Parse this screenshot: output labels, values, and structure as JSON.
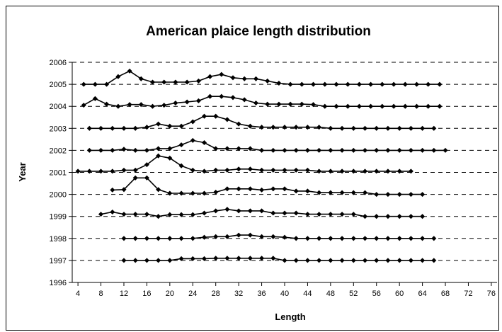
{
  "chart_data": {
    "type": "line",
    "title": "American plaice length distribution",
    "xlabel": "Length",
    "ylabel": "Year",
    "xlim": [
      3,
      77
    ],
    "ylim": [
      1996,
      2006
    ],
    "x_ticks": [
      4,
      8,
      12,
      16,
      20,
      24,
      28,
      32,
      36,
      40,
      44,
      48,
      52,
      56,
      60,
      64,
      68,
      72,
      76
    ],
    "y_ticks": [
      1996,
      1997,
      1998,
      1999,
      2000,
      2001,
      2002,
      2003,
      2004,
      2005,
      2006
    ],
    "grid": "horizontal dashed at each year",
    "legend": "none",
    "line_color": "#000000",
    "series": [
      {
        "year": 1997,
        "x": [
          12,
          14,
          16,
          18,
          20,
          22,
          24,
          26,
          28,
          30,
          32,
          34,
          36,
          38,
          40,
          42,
          44,
          46,
          48,
          50,
          52,
          54,
          56,
          58,
          60,
          62,
          64,
          66
        ],
        "y": [
          1997.0,
          1997.0,
          1997.0,
          1997.0,
          1997.0,
          1997.08,
          1997.08,
          1997.08,
          1997.1,
          1997.1,
          1997.1,
          1997.1,
          1997.1,
          1997.1,
          1997.0,
          1997.0,
          1997.0,
          1997.0,
          1997.0,
          1997.0,
          1997.0,
          1997.0,
          1997.0,
          1997.0,
          1997.0,
          1997.0,
          1997.0,
          1997.0
        ]
      },
      {
        "year": 1998,
        "x": [
          12,
          14,
          16,
          18,
          20,
          22,
          24,
          26,
          28,
          30,
          32,
          34,
          36,
          38,
          40,
          42,
          44,
          46,
          48,
          50,
          52,
          54,
          56,
          58,
          60,
          62,
          64,
          66
        ],
        "y": [
          1998.0,
          1998.0,
          1998.0,
          1998.0,
          1998.0,
          1998.0,
          1998.0,
          1998.05,
          1998.08,
          1998.08,
          1998.15,
          1998.15,
          1998.08,
          1998.08,
          1998.05,
          1998.0,
          1998.0,
          1998.0,
          1998.0,
          1998.0,
          1998.0,
          1998.0,
          1998.0,
          1998.0,
          1998.0,
          1998.0,
          1998.0,
          1998.0
        ]
      },
      {
        "year": 1999,
        "x": [
          8,
          10,
          12,
          14,
          16,
          18,
          20,
          22,
          24,
          26,
          28,
          30,
          32,
          34,
          36,
          38,
          40,
          42,
          44,
          46,
          48,
          50,
          52,
          54,
          56,
          58,
          60,
          62,
          64
        ],
        "y": [
          1999.1,
          1999.2,
          1999.1,
          1999.1,
          1999.1,
          1999.0,
          1999.08,
          1999.08,
          1999.08,
          1999.15,
          1999.25,
          1999.32,
          1999.25,
          1999.25,
          1999.25,
          1999.15,
          1999.15,
          1999.15,
          1999.1,
          1999.1,
          1999.1,
          1999.1,
          1999.1,
          1999.0,
          1999.0,
          1999.0,
          1999.0,
          1999.0,
          1999.0
        ]
      },
      {
        "year": 2000,
        "x": [
          10,
          12,
          14,
          16,
          18,
          20,
          22,
          24,
          26,
          28,
          30,
          32,
          34,
          36,
          38,
          40,
          42,
          44,
          46,
          48,
          50,
          52,
          54,
          56,
          58,
          60,
          62,
          64
        ],
        "y": [
          2000.2,
          2000.22,
          2000.75,
          2000.75,
          2000.22,
          2000.05,
          2000.05,
          2000.05,
          2000.05,
          2000.1,
          2000.25,
          2000.25,
          2000.25,
          2000.2,
          2000.25,
          2000.25,
          2000.15,
          2000.15,
          2000.08,
          2000.08,
          2000.08,
          2000.08,
          2000.08,
          2000.0,
          2000.0,
          2000.0,
          2000.0,
          2000.0
        ]
      },
      {
        "year": 2001,
        "x": [
          4,
          6,
          8,
          10,
          12,
          14,
          16,
          18,
          20,
          22,
          24,
          26,
          28,
          30,
          32,
          34,
          36,
          38,
          40,
          42,
          44,
          46,
          48,
          50,
          52,
          54,
          56,
          58,
          60,
          62
        ],
        "y": [
          2001.05,
          2001.05,
          2001.05,
          2001.05,
          2001.1,
          2001.1,
          2001.35,
          2001.75,
          2001.65,
          2001.3,
          2001.1,
          2001.05,
          2001.1,
          2001.1,
          2001.15,
          2001.15,
          2001.1,
          2001.1,
          2001.1,
          2001.1,
          2001.1,
          2001.05,
          2001.05,
          2001.05,
          2001.05,
          2001.05,
          2001.05,
          2001.05,
          2001.05,
          2001.05
        ]
      },
      {
        "year": 2002,
        "x": [
          6,
          8,
          10,
          12,
          14,
          16,
          18,
          20,
          22,
          24,
          26,
          28,
          30,
          32,
          34,
          36,
          38,
          40,
          42,
          44,
          46,
          48,
          50,
          52,
          54,
          56,
          58,
          60,
          62,
          64,
          66,
          68
        ],
        "y": [
          2002.0,
          2002.0,
          2002.0,
          2002.05,
          2002.0,
          2002.0,
          2002.08,
          2002.08,
          2002.25,
          2002.45,
          2002.35,
          2002.08,
          2002.08,
          2002.08,
          2002.08,
          2002.0,
          2002.0,
          2002.0,
          2002.0,
          2002.0,
          2002.0,
          2002.0,
          2002.0,
          2002.0,
          2002.0,
          2002.0,
          2002.0,
          2002.0,
          2002.0,
          2002.0,
          2002.0,
          2002.0
        ]
      },
      {
        "year": 2003,
        "x": [
          6,
          8,
          10,
          12,
          14,
          16,
          18,
          20,
          22,
          24,
          26,
          28,
          30,
          32,
          34,
          36,
          38,
          40,
          42,
          44,
          46,
          48,
          50,
          52,
          54,
          56,
          58,
          60,
          62,
          64,
          66
        ],
        "y": [
          2003.0,
          2003.0,
          2003.0,
          2003.0,
          2003.0,
          2003.05,
          2003.2,
          2003.1,
          2003.1,
          2003.3,
          2003.55,
          2003.55,
          2003.4,
          2003.2,
          2003.1,
          2003.05,
          2003.05,
          2003.05,
          2003.05,
          2003.05,
          2003.05,
          2003.0,
          2003.0,
          2003.0,
          2003.0,
          2003.0,
          2003.0,
          2003.0,
          2003.0,
          2003.0,
          2003.0
        ]
      },
      {
        "year": 2004,
        "x": [
          5,
          7,
          9,
          11,
          13,
          15,
          17,
          19,
          21,
          23,
          25,
          27,
          29,
          31,
          33,
          35,
          37,
          39,
          41,
          43,
          45,
          47,
          49,
          51,
          53,
          55,
          57,
          59,
          61,
          63,
          65,
          67
        ],
        "y": [
          2004.05,
          2004.35,
          2004.1,
          2004.0,
          2004.08,
          2004.08,
          2004.0,
          2004.05,
          2004.15,
          2004.2,
          2004.25,
          2004.45,
          2004.45,
          2004.4,
          2004.3,
          2004.15,
          2004.1,
          2004.1,
          2004.1,
          2004.1,
          2004.08,
          2004.0,
          2004.0,
          2004.0,
          2004.0,
          2004.0,
          2004.0,
          2004.0,
          2004.0,
          2004.0,
          2004.0,
          2004.0
        ]
      },
      {
        "year": 2005,
        "x": [
          5,
          7,
          9,
          11,
          13,
          15,
          17,
          19,
          21,
          23,
          25,
          27,
          29,
          31,
          33,
          35,
          37,
          39,
          41,
          43,
          45,
          47,
          49,
          51,
          53,
          55,
          57,
          59,
          61,
          63,
          65,
          67
        ],
        "y": [
          2005.0,
          2005.0,
          2005.0,
          2005.35,
          2005.6,
          2005.25,
          2005.1,
          2005.1,
          2005.1,
          2005.1,
          2005.15,
          2005.35,
          2005.45,
          2005.3,
          2005.25,
          2005.25,
          2005.15,
          2005.05,
          2005.0,
          2005.0,
          2005.0,
          2005.0,
          2005.0,
          2005.0,
          2005.0,
          2005.0,
          2005.0,
          2005.0,
          2005.0,
          2005.0,
          2005.0,
          2005.0
        ]
      }
    ]
  }
}
